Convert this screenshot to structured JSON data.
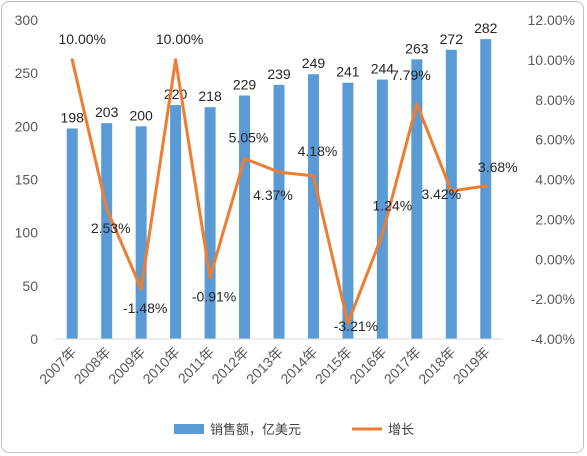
{
  "chart_data": {
    "type": "bar",
    "categories": [
      "2007年",
      "2008年",
      "2009年",
      "2010年",
      "2011年",
      "2012年",
      "2013年",
      "2014年",
      "2015年",
      "2016年",
      "2017年",
      "2018年",
      "2019年"
    ],
    "series": [
      {
        "name": "销售额，亿美元",
        "kind": "bar",
        "axis": "left",
        "color": "#5b9bd5",
        "values": [
          198,
          203,
          200,
          220,
          218,
          229,
          239,
          249,
          241,
          244,
          263,
          272,
          282
        ],
        "labels": [
          "198",
          "203",
          "200",
          "220",
          "218",
          "229",
          "239",
          "249",
          "241",
          "244",
          "263",
          "272",
          "282"
        ]
      },
      {
        "name": "增长",
        "kind": "line",
        "axis": "right",
        "color": "#ed7d31",
        "values": [
          10.0,
          2.53,
          -1.48,
          10.0,
          -0.91,
          5.05,
          4.37,
          4.18,
          -3.21,
          1.24,
          7.79,
          3.42,
          3.68
        ],
        "labels": [
          "10.00%",
          "2.53%",
          "-1.48%",
          "10.00%",
          "-0.91%",
          "5.05%",
          "4.37%",
          "4.18%",
          "-3.21%",
          "1.24%",
          "7.79%",
          "3.42%",
          "3.68%"
        ]
      }
    ],
    "y_left": {
      "min": 0,
      "max": 300,
      "ticks": [
        "0",
        "50",
        "100",
        "150",
        "200",
        "250",
        "300"
      ]
    },
    "y_right": {
      "min": -4,
      "max": 12,
      "ticks": [
        "-4.00%",
        "-2.00%",
        "0.00%",
        "2.00%",
        "4.00%",
        "6.00%",
        "8.00%",
        "10.00%",
        "12.00%"
      ]
    },
    "legend": {
      "position": "bottom"
    },
    "grid": false
  }
}
